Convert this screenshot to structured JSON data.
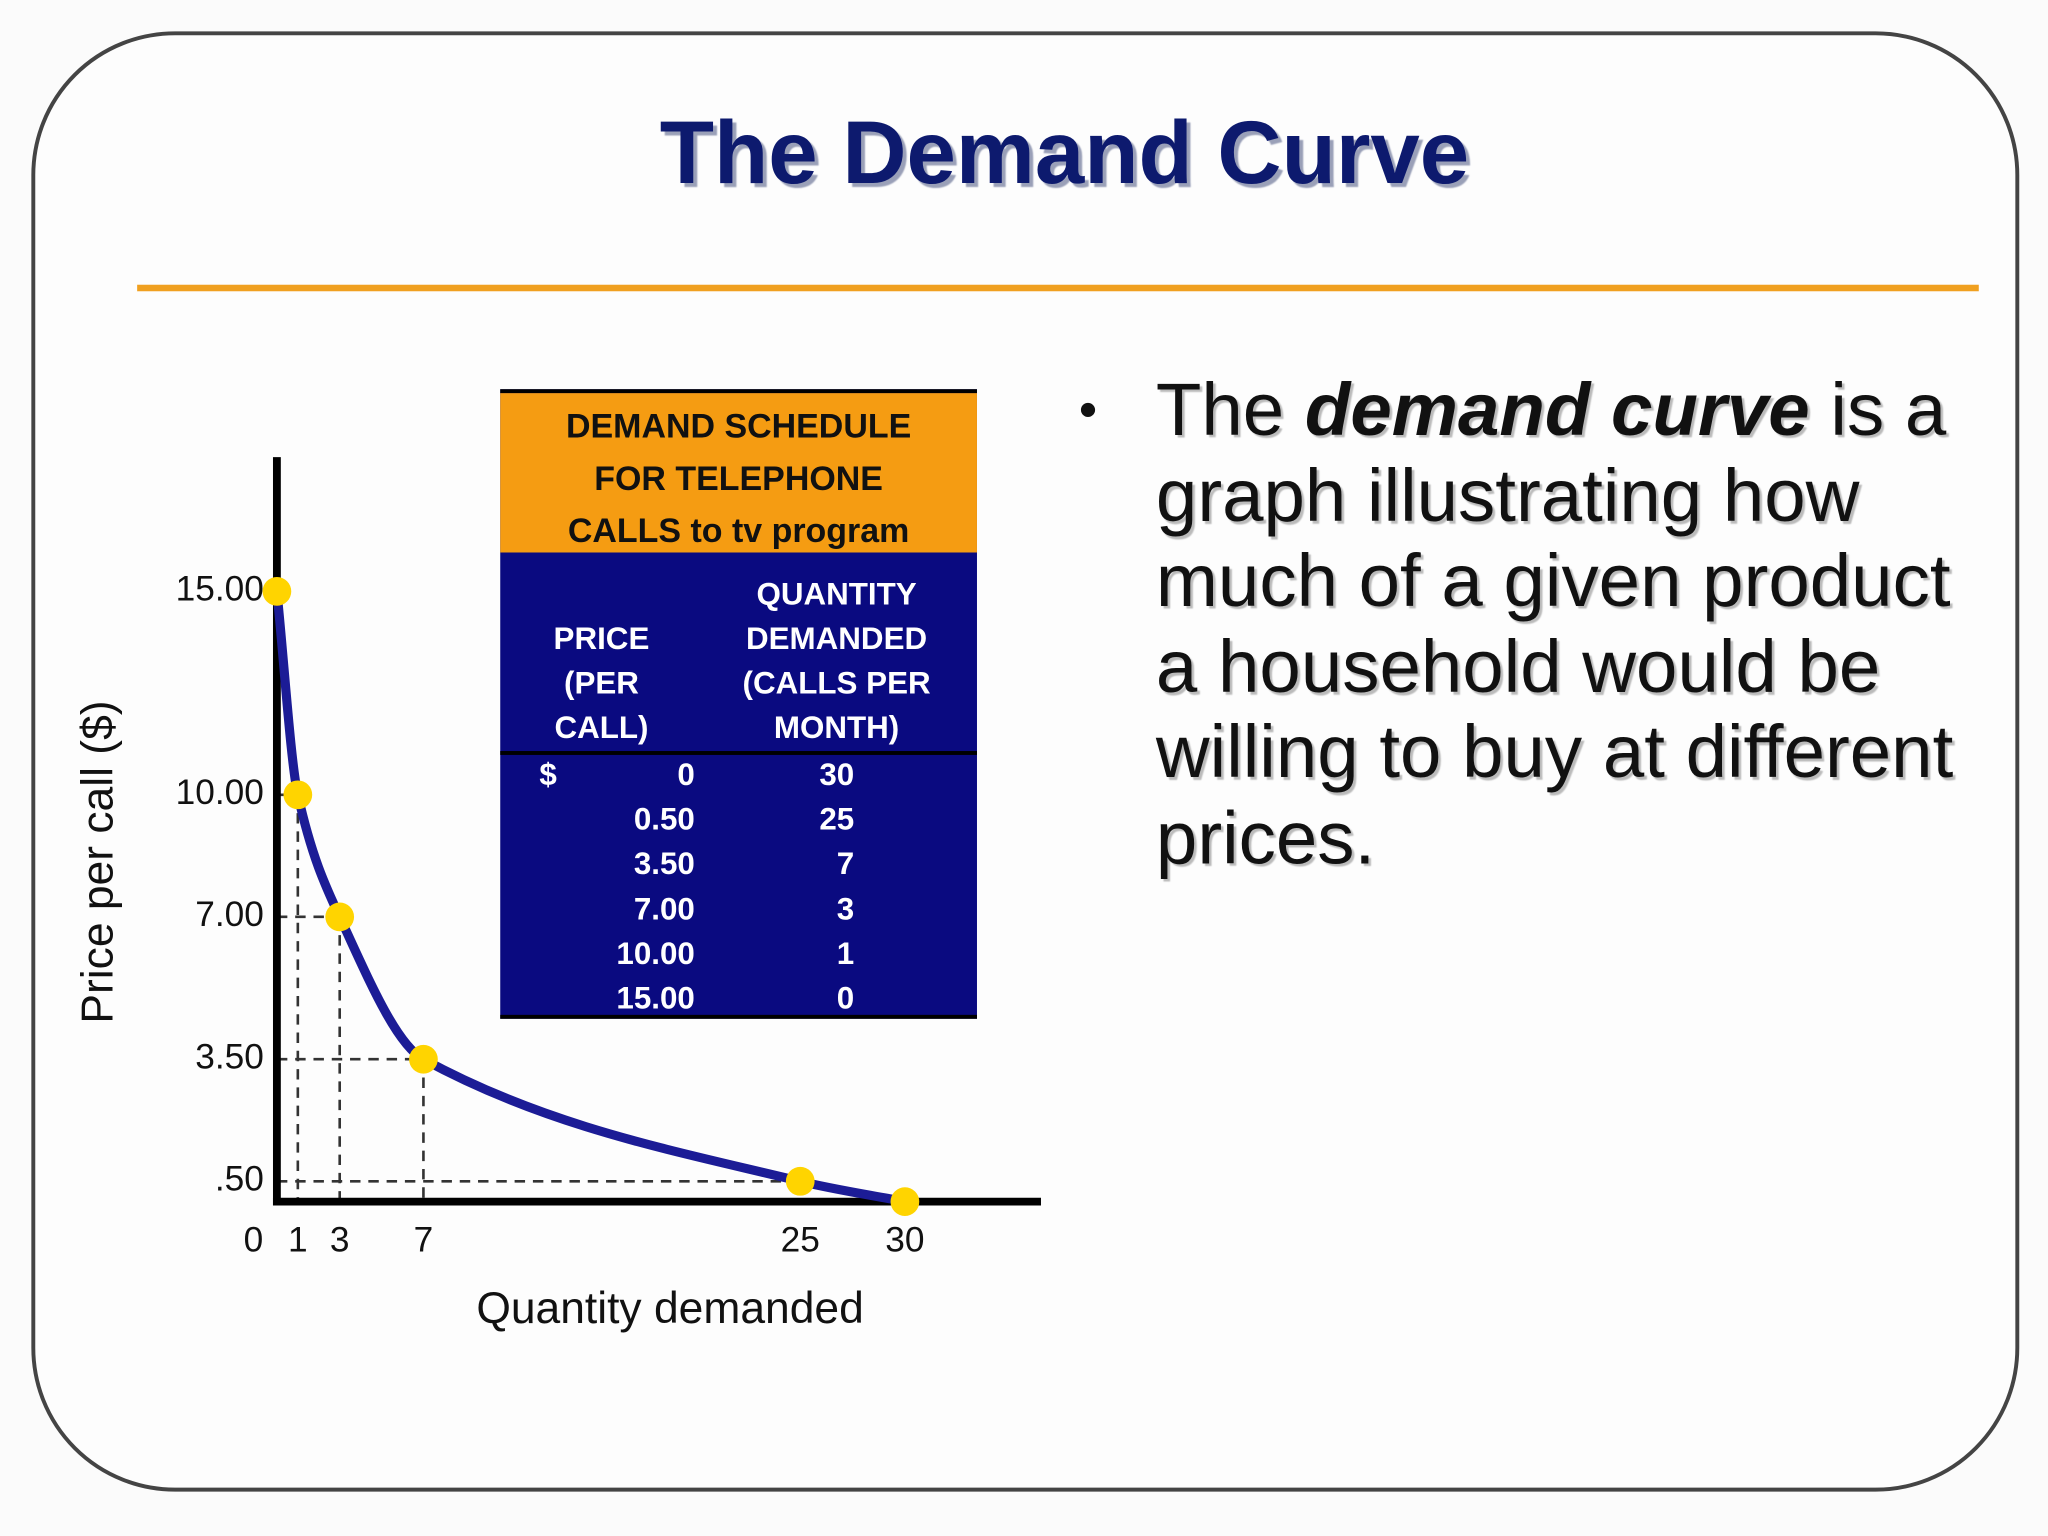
{
  "title": "The Demand Curve",
  "table": {
    "header": [
      "DEMAND SCHEDULE",
      "FOR TELEPHONE",
      "CALLS to tv program"
    ],
    "columns": [
      [
        "PRICE",
        "(PER",
        "CALL)"
      ],
      [
        "QUANTITY",
        "DEMANDED",
        "(CALLS PER",
        "MONTH)"
      ]
    ],
    "currency": "$",
    "rows": [
      [
        "0",
        "30"
      ],
      [
        "0.50",
        "25"
      ],
      [
        "3.50",
        "7"
      ],
      [
        "7.00",
        "3"
      ],
      [
        "10.00",
        "1"
      ],
      [
        "15.00",
        "0"
      ]
    ]
  },
  "bullet": {
    "before": "The",
    "emphasis": "demand curve",
    "after": "is a graph illustrating how much of a given product a household would be willing to buy at different prices."
  },
  "chart_data": {
    "type": "line",
    "x_label": "Quantity demanded",
    "y_label": "Price per call ($)",
    "x": [
      0,
      1,
      3,
      7,
      25,
      30
    ],
    "values": [
      15,
      10,
      7,
      3.5,
      0.5,
      0
    ],
    "color": "#1c1c96",
    "marker_color": "#ffd400",
    "xlim": [
      0,
      36.5
    ],
    "ylim": [
      0,
      18.3
    ],
    "xticks": [
      0,
      1,
      3,
      7,
      25,
      30
    ],
    "yticks": [
      {
        "value": 0.5,
        "label": ".50"
      },
      {
        "value": 3.5,
        "label": "3.50"
      },
      {
        "value": 7,
        "label": "7.00"
      },
      {
        "value": 10,
        "label": "10.00"
      },
      {
        "value": 15,
        "label": "15.00"
      }
    ]
  }
}
